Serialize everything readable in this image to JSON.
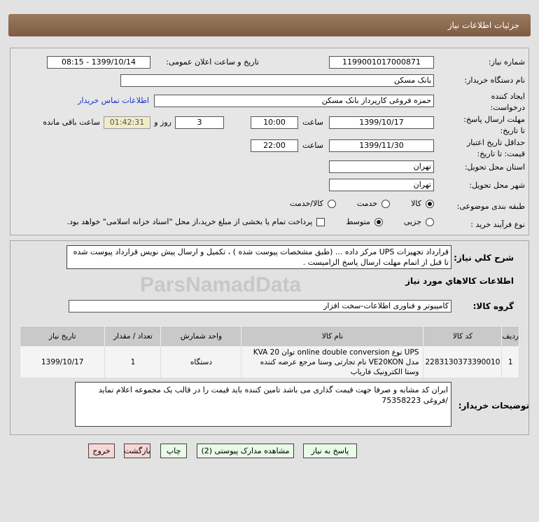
{
  "header": {
    "title": "جزئیات اطلاعات نیاز"
  },
  "form": {
    "need_number_label": "شماره نیاز:",
    "need_number": "1199001017000871",
    "announce_label": "تاریخ و ساعت اعلان عمومی:",
    "announce_value": "1399/10/14 - 08:15",
    "buyer_label": "نام دستگاه خریدار:",
    "buyer": "بانک مسکن",
    "creator_label": "ایجاد کننده درخواست:",
    "creator": "حمزه فروغی کارپرداز بانک مسکن",
    "contact_link": "اطلاعات تماس خریدار",
    "deadline_label": "مهلت ارسال پاسخ: تا تاریخ:",
    "deadline_date": "1399/10/17",
    "time_label": "ساعت",
    "deadline_time": "10:00",
    "days": "3",
    "days_label": "روز و",
    "remaining": "01:42:31",
    "remaining_label": "ساعت باقی مانده",
    "validity_label": "حداقل تاریخ اعتبار قیمت: تا تاریخ:",
    "validity_date": "1399/11/30",
    "validity_time": "22:00",
    "province_label": "استان محل تحویل:",
    "province": "تهران",
    "city_label": "شهر محل تحویل:",
    "city": "تهران",
    "category_label": "طبقه بندی موضوعی:",
    "category_options": [
      "کالا",
      "خدمت",
      "کالا/خدمت"
    ],
    "category_selected": "کالا",
    "process_label": "نوع فرآیند خرید :",
    "process_options": [
      "جزیی",
      "متوسط"
    ],
    "process_selected": "متوسط",
    "payment_note": "پرداخت تمام یا بخشی از مبلغ خرید،از محل \"اسناد خزانه اسلامی\" خواهد بود."
  },
  "description": {
    "label": "شرح کلي نیاز:",
    "text": "قرارداد تجهیزات UPS مرکز داده ...  (طبق مشخصات پیوست شده ) ، تکمیل و ارسال پیش نویس قرارداد پیوست شده تا قبل از اتمام مهلت ارسال پاسخ الزامیست ."
  },
  "goods": {
    "title": "اطلاعات کالاهاي مورد نیاز",
    "group_label": "گروه کالا:",
    "group": "کامپیوتر و فناوری اطلاعات-سخت افزار",
    "columns": [
      "ردیف",
      "کد کالا",
      "نام کالا",
      "واحد شمارش",
      "تعداد / مقدار",
      "تاریخ نیاز"
    ],
    "rows": [
      [
        "1",
        "2283130373390010",
        "UPS نوع online double conversion توان KVA 20 مدل VE20KON نام تجارتی وستا مرجع عرضه کننده وستا الکترونیک فاریاب",
        "دستگاه",
        "1",
        "1399/10/17"
      ]
    ]
  },
  "notes": {
    "label": "توضیحات خریدار:",
    "text": "ایران کد مشابه و صرفا جهت قیمت گذاری می باشد تامین کننده باید قیمت را در قالب یک مجموعه اعلام نماید\n/فروغی 75358223"
  },
  "buttons": {
    "reply": "پاسخ به نیاز",
    "attachments": "مشاهده مدارک پیوستی (2)",
    "print": "چاپ",
    "back": "بازگشت",
    "exit": "خروج"
  },
  "watermark": "ParsNamadData"
}
